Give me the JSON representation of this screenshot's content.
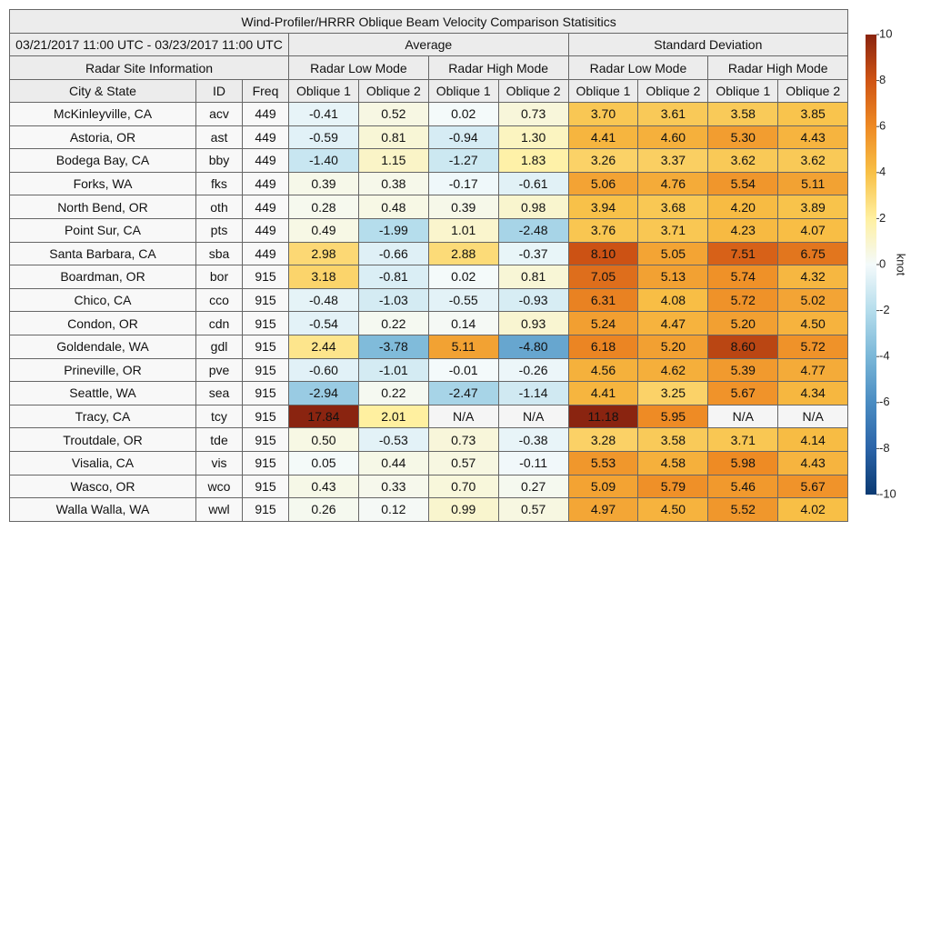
{
  "table": {
    "title": "Wind-Profiler/HRRR Oblique Beam Velocity Comparison Statisitics",
    "period": "03/21/2017 11:00 UTC - 03/23/2017 11:00 UTC",
    "groups": [
      "Average",
      "Standard Deviation"
    ],
    "site_header": "Radar Site Information",
    "modes": [
      "Radar Low Mode",
      "Radar High Mode",
      "Radar Low Mode",
      "Radar High Mode"
    ],
    "columns": [
      "City & State",
      "ID",
      "Freq",
      "Oblique 1",
      "Oblique 2",
      "Oblique 1",
      "Oblique 2",
      "Oblique 1",
      "Oblique 2",
      "Oblique 1",
      "Oblique 2"
    ],
    "rows": [
      [
        "McKinleyville, CA",
        "acv",
        "449",
        "-0.41",
        "0.52",
        "0.02",
        "0.73",
        "3.70",
        "3.61",
        "3.58",
        "3.85"
      ],
      [
        "Astoria, OR",
        "ast",
        "449",
        "-0.59",
        "0.81",
        "-0.94",
        "1.30",
        "4.41",
        "4.60",
        "5.30",
        "4.43"
      ],
      [
        "Bodega Bay, CA",
        "bby",
        "449",
        "-1.40",
        "1.15",
        "-1.27",
        "1.83",
        "3.26",
        "3.37",
        "3.62",
        "3.62"
      ],
      [
        "Forks, WA",
        "fks",
        "449",
        "0.39",
        "0.38",
        "-0.17",
        "-0.61",
        "5.06",
        "4.76",
        "5.54",
        "5.11"
      ],
      [
        "North Bend, OR",
        "oth",
        "449",
        "0.28",
        "0.48",
        "0.39",
        "0.98",
        "3.94",
        "3.68",
        "4.20",
        "3.89"
      ],
      [
        "Point Sur, CA",
        "pts",
        "449",
        "0.49",
        "-1.99",
        "1.01",
        "-2.48",
        "3.76",
        "3.71",
        "4.23",
        "4.07"
      ],
      [
        "Santa Barbara, CA",
        "sba",
        "449",
        "2.98",
        "-0.66",
        "2.88",
        "-0.37",
        "8.10",
        "5.05",
        "7.51",
        "6.75"
      ],
      [
        "Boardman, OR",
        "bor",
        "915",
        "3.18",
        "-0.81",
        "0.02",
        "0.81",
        "7.05",
        "5.13",
        "5.74",
        "4.32"
      ],
      [
        "Chico, CA",
        "cco",
        "915",
        "-0.48",
        "-1.03",
        "-0.55",
        "-0.93",
        "6.31",
        "4.08",
        "5.72",
        "5.02"
      ],
      [
        "Condon, OR",
        "cdn",
        "915",
        "-0.54",
        "0.22",
        "0.14",
        "0.93",
        "5.24",
        "4.47",
        "5.20",
        "4.50"
      ],
      [
        "Goldendale, WA",
        "gdl",
        "915",
        "2.44",
        "-3.78",
        "5.11",
        "-4.80",
        "6.18",
        "5.20",
        "8.60",
        "5.72"
      ],
      [
        "Prineville, OR",
        "pve",
        "915",
        "-0.60",
        "-1.01",
        "-0.01",
        "-0.26",
        "4.56",
        "4.62",
        "5.39",
        "4.77"
      ],
      [
        "Seattle, WA",
        "sea",
        "915",
        "-2.94",
        "0.22",
        "-2.47",
        "-1.14",
        "4.41",
        "3.25",
        "5.67",
        "4.34"
      ],
      [
        "Tracy, CA",
        "tcy",
        "915",
        "17.84",
        "2.01",
        "N/A",
        "N/A",
        "11.18",
        "5.95",
        "N/A",
        "N/A"
      ],
      [
        "Troutdale, OR",
        "tde",
        "915",
        "0.50",
        "-0.53",
        "0.73",
        "-0.38",
        "3.28",
        "3.58",
        "3.71",
        "4.14"
      ],
      [
        "Visalia, CA",
        "vis",
        "915",
        "0.05",
        "0.44",
        "0.57",
        "-0.11",
        "5.53",
        "4.58",
        "5.98",
        "4.43"
      ],
      [
        "Wasco, OR",
        "wco",
        "915",
        "0.43",
        "0.33",
        "0.70",
        "0.27",
        "5.09",
        "5.79",
        "5.46",
        "5.67"
      ],
      [
        "Walla Walla, WA",
        "wwl",
        "915",
        "0.26",
        "0.12",
        "0.99",
        "0.57",
        "4.97",
        "4.50",
        "5.52",
        "4.02"
      ]
    ],
    "colorbar": {
      "label": "knot",
      "ticks": [
        -10,
        -8,
        -6,
        -4,
        -2,
        0,
        2,
        4,
        6,
        8,
        10
      ],
      "colors": [
        "#0b3a72",
        "#2b64a8",
        "#4a8cc2",
        "#7ab7d8",
        "#b5ddec",
        "#f4fafb",
        "#fff0a0",
        "#f8c046",
        "#ee8a24",
        "#cf5414",
        "#8a2410"
      ]
    }
  }
}
